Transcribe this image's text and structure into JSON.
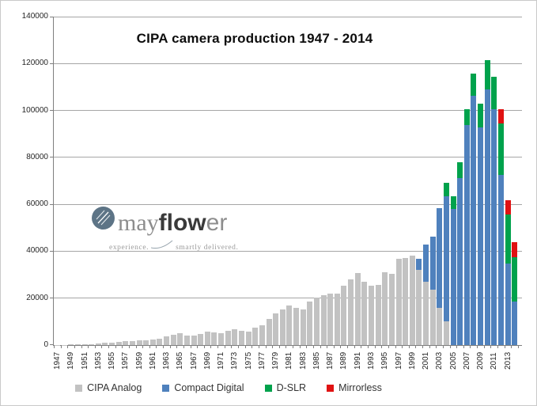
{
  "page": {
    "background": "#ffffff",
    "border_color": "#c9c9c9"
  },
  "chart_data": {
    "type": "bar",
    "stacked": true,
    "title": "CIPA  camera production 1947 - 2014",
    "xlabel": "",
    "ylabel": "",
    "year_start": 1947,
    "year_end": 2014,
    "ylim": [
      0,
      140000
    ],
    "y_tick_step": 20000,
    "y_tick_labels": [
      "0",
      "20000",
      "40000",
      "60000",
      "80000",
      "100000",
      "120000",
      "140000"
    ],
    "x_tick_labels": [
      "1947",
      "1949",
      "1951",
      "1953",
      "1955",
      "1957",
      "1959",
      "1961",
      "1963",
      "1965",
      "1967",
      "1969",
      "1971",
      "1973",
      "1975",
      "1977",
      "1979",
      "1981",
      "1983",
      "1985",
      "1987",
      "1989",
      "1991",
      "1993",
      "1995",
      "1997",
      "1999",
      "2001",
      "2003",
      "2005",
      "2007",
      "2009",
      "2011",
      "2013"
    ],
    "grid": "horizontal",
    "legend_position": "bottom",
    "axis_color": "#7f7f7f",
    "gridline_color": "#a6a6a6",
    "series": [
      {
        "name": "CIPA Analog",
        "color": "#c2c2c2",
        "values_by_year": {
          "1947": 100,
          "1948": 150,
          "1949": 200,
          "1950": 250,
          "1951": 300,
          "1952": 400,
          "1953": 600,
          "1954": 900,
          "1955": 1100,
          "1956": 1350,
          "1957": 1550,
          "1958": 1600,
          "1959": 2100,
          "1960": 1900,
          "1961": 2350,
          "1962": 2800,
          "1963": 3600,
          "1964": 4500,
          "1965": 5050,
          "1966": 3950,
          "1967": 4150,
          "1968": 4850,
          "1969": 5600,
          "1970": 5300,
          "1971": 5050,
          "1972": 6200,
          "1973": 6750,
          "1974": 6200,
          "1975": 5850,
          "1976": 7300,
          "1977": 8400,
          "1978": 11000,
          "1979": 13500,
          "1980": 15300,
          "1981": 16900,
          "1982": 15700,
          "1983": 15200,
          "1984": 18500,
          "1985": 20200,
          "1986": 21300,
          "1987": 21900,
          "1988": 22100,
          "1989": 25300,
          "1990": 28100,
          "1991": 30600,
          "1992": 27000,
          "1993": 25300,
          "1994": 25500,
          "1995": 30900,
          "1996": 30300,
          "1997": 36700,
          "1998": 37000,
          "1999": 38000,
          "2000": 32000,
          "2001": 27000,
          "2002": 23600,
          "2003": 15800,
          "2004": 10100
        }
      },
      {
        "name": "Compact Digital",
        "color": "#4f81bd",
        "values_by_year": {
          "2000": 4800,
          "2001": 15800,
          "2002": 22500,
          "2003": 42500,
          "2004": 53400,
          "2005": 57900,
          "2006": 71300,
          "2007": 93800,
          "2008": 106200,
          "2009": 92700,
          "2010": 109000,
          "2011": 100500,
          "2012": 72500,
          "2013": 34800,
          "2014": 18500
        }
      },
      {
        "name": "D-SLR",
        "color": "#00a24c",
        "values_by_year": {
          "2004": 5600,
          "2005": 5600,
          "2006": 6800,
          "2007": 6600,
          "2008": 9500,
          "2009": 10100,
          "2010": 12300,
          "2011": 13700,
          "2012": 21900,
          "2013": 20800,
          "2014": 19100
        }
      },
      {
        "name": "Mirrorless",
        "color": "#e01212",
        "values_by_year": {
          "2012": 6100,
          "2013": 6200,
          "2014": 6200
        }
      }
    ]
  },
  "watermark": {
    "brand": {
      "may": "may",
      "flow": "flow",
      "er": "er"
    },
    "tagline": [
      "experience.",
      "smartly delivered."
    ],
    "logo_color": "#5d7486"
  }
}
